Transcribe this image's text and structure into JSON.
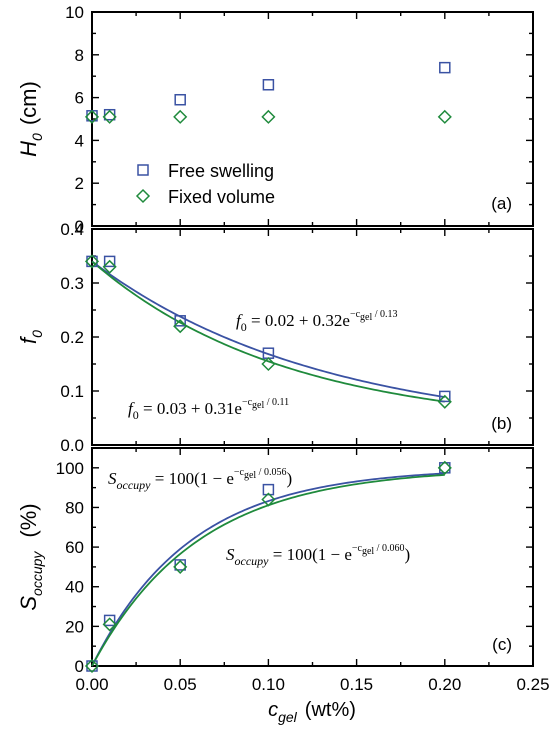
{
  "colors": {
    "free": "#3a52a3",
    "fixed": "#1f8a3c"
  },
  "legend": {
    "free_label": "Free swelling",
    "fixed_label": "Fixed volume"
  },
  "xaxis": {
    "label": "c",
    "label_sub": "gel",
    "unit": "(wt%)",
    "ticks": [
      "0.00",
      "0.05",
      "0.10",
      "0.15",
      "0.20",
      "0.25"
    ]
  },
  "chart_data": [
    {
      "type": "scatter",
      "panel": "(a)",
      "ylabel": {
        "main": "H",
        "sub": "0",
        "unit": "(cm)"
      },
      "xlim": [
        0,
        0.25
      ],
      "ylim": [
        0,
        10
      ],
      "yticks": [
        "0",
        "2",
        "4",
        "6",
        "8",
        "10"
      ],
      "series": [
        {
          "name": "Free swelling",
          "marker": "square",
          "x": [
            0.0,
            0.01,
            0.05,
            0.1,
            0.2
          ],
          "y": [
            5.15,
            5.2,
            5.9,
            6.6,
            7.4
          ]
        },
        {
          "name": "Fixed volume",
          "marker": "diamond",
          "x": [
            0.0,
            0.01,
            0.05,
            0.1,
            0.2
          ],
          "y": [
            5.1,
            5.1,
            5.1,
            5.1,
            5.1
          ]
        }
      ]
    },
    {
      "type": "scatter",
      "panel": "(b)",
      "ylabel": {
        "main": "f",
        "sub": "0",
        "unit": ""
      },
      "xlim": [
        0,
        0.25
      ],
      "ylim": [
        0,
        0.4
      ],
      "yticks": [
        "0.0",
        "0.1",
        "0.2",
        "0.3",
        "0.4"
      ],
      "series": [
        {
          "name": "Free swelling",
          "marker": "square",
          "x": [
            0.0,
            0.01,
            0.05,
            0.1,
            0.2
          ],
          "y": [
            0.34,
            0.34,
            0.23,
            0.17,
            0.09
          ]
        },
        {
          "name": "Fixed volume",
          "marker": "diamond",
          "x": [
            0.0,
            0.01,
            0.05,
            0.1,
            0.2
          ],
          "y": [
            0.34,
            0.33,
            0.22,
            0.15,
            0.08
          ]
        }
      ],
      "fits": [
        {
          "series": "Free swelling",
          "a": 0.02,
          "b": 0.32,
          "tau": 0.13,
          "equation": {
            "lhs": "f",
            "lhs_sub": "0",
            "rhs": " = 0.02 + 0.32e",
            "exp": "−c",
            "exp_sub": "gel",
            "exp_tail": " / 0.13"
          }
        },
        {
          "series": "Fixed volume",
          "a": 0.03,
          "b": 0.31,
          "tau": 0.11,
          "equation": {
            "lhs": "f",
            "lhs_sub": "0",
            "rhs": " = 0.03 + 0.31e",
            "exp": "−c",
            "exp_sub": "gel",
            "exp_tail": " / 0.11"
          }
        }
      ]
    },
    {
      "type": "scatter",
      "panel": "(c)",
      "ylabel": {
        "main": "S",
        "sub": "occupy",
        "unit": "(%)"
      },
      "xlim": [
        0,
        0.25
      ],
      "ylim": [
        0,
        110
      ],
      "yticks": [
        "0",
        "20",
        "40",
        "60",
        "80",
        "100"
      ],
      "series": [
        {
          "name": "Free swelling",
          "marker": "square",
          "x": [
            0.0,
            0.01,
            0.05,
            0.1,
            0.2
          ],
          "y": [
            0,
            23,
            51,
            89,
            100
          ]
        },
        {
          "name": "Fixed volume",
          "marker": "diamond",
          "x": [
            0.0,
            0.01,
            0.05,
            0.1,
            0.2
          ],
          "y": [
            0,
            21,
            50,
            84,
            100
          ]
        }
      ],
      "fits": [
        {
          "series": "Free swelling",
          "tau": 0.056,
          "equation": {
            "lhs": "S",
            "lhs_sub": "occupy",
            "rhs": " = 100(1 − e",
            "exp": "−c",
            "exp_sub": "gel",
            "exp_tail": " / 0.056",
            "close": ")"
          }
        },
        {
          "series": "Fixed volume",
          "tau": 0.06,
          "equation": {
            "lhs": "S",
            "lhs_sub": "occupy",
            "rhs": " = 100(1 − e",
            "exp": "−c",
            "exp_sub": "gel",
            "exp_tail": " / 0.060",
            "close": ")"
          }
        }
      ]
    }
  ]
}
